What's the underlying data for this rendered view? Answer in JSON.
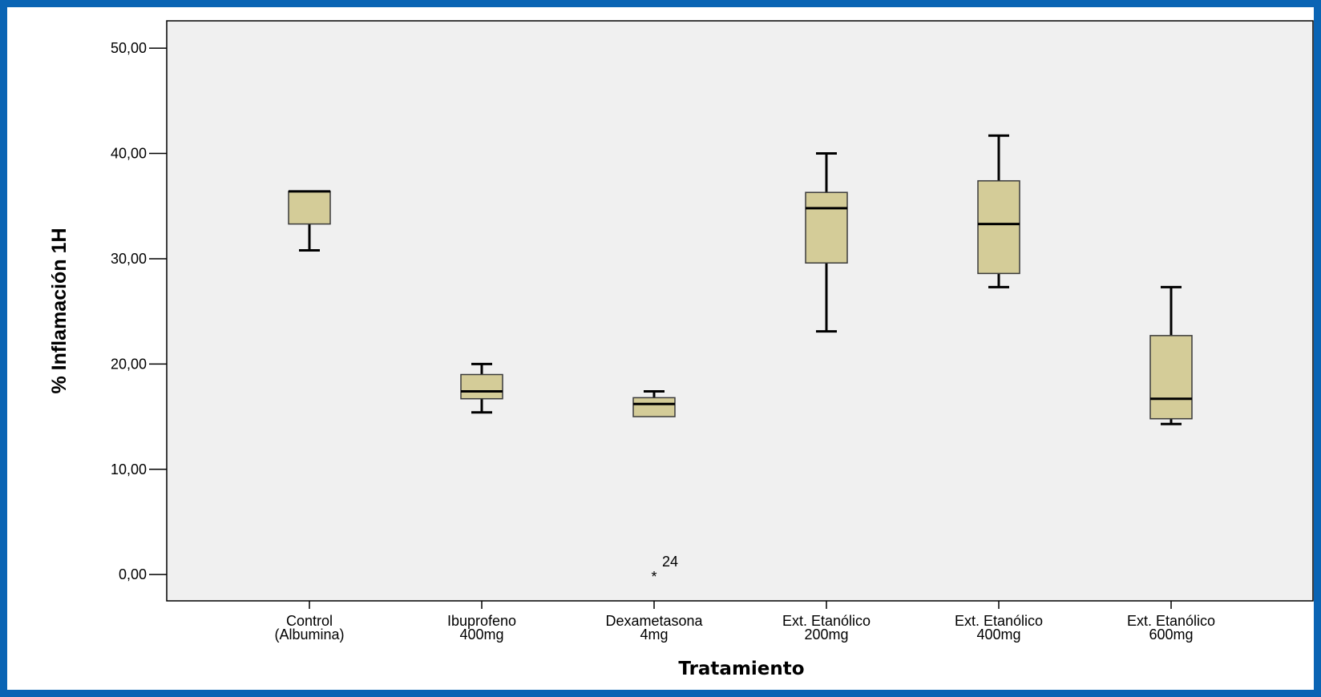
{
  "chart_data": {
    "type": "boxplot",
    "title": "",
    "xlabel": "Tratamiento",
    "ylabel": "% Inflamación 1H",
    "ylim": [
      -2.5,
      52.6
    ],
    "yticks": [
      {
        "value": 0,
        "label": "0,00"
      },
      {
        "value": 10,
        "label": "10,00"
      },
      {
        "value": 20,
        "label": "20,00"
      },
      {
        "value": 30,
        "label": "30,00"
      },
      {
        "value": 40,
        "label": "40,00"
      },
      {
        "value": 50,
        "label": "50,00"
      }
    ],
    "categories": [
      {
        "line1": "Control",
        "line2": "(Albumina)"
      },
      {
        "line1": "Ibuprofeno",
        "line2": "400mg"
      },
      {
        "line1": "Dexametasona",
        "line2": "4mg"
      },
      {
        "line1": "Ext. Etanólico",
        "line2": "200mg"
      },
      {
        "line1": "Ext. Etanólico",
        "line2": "400mg"
      },
      {
        "line1": "Ext. Etanólico",
        "line2": "600mg"
      }
    ],
    "boxes": [
      {
        "whisker_low": 30.8,
        "q1": 33.3,
        "median": 36.4,
        "q3": 36.4,
        "whisker_high": 36.4
      },
      {
        "whisker_low": 15.4,
        "q1": 16.7,
        "median": 17.4,
        "q3": 19.0,
        "whisker_high": 20.0
      },
      {
        "whisker_low": 15.0,
        "q1": 15.0,
        "median": 16.2,
        "q3": 16.8,
        "whisker_high": 17.4
      },
      {
        "whisker_low": 23.1,
        "q1": 29.6,
        "median": 34.8,
        "q3": 36.3,
        "whisker_high": 40.0
      },
      {
        "whisker_low": 27.3,
        "q1": 28.6,
        "median": 33.3,
        "q3": 37.4,
        "whisker_high": 41.7
      },
      {
        "whisker_low": 14.3,
        "q1": 14.8,
        "median": 16.7,
        "q3": 22.7,
        "whisker_high": 27.3
      }
    ],
    "outliers": [
      {
        "category_index": 2,
        "value": 0.0,
        "marker": "*",
        "label": "24"
      }
    ],
    "grid": false,
    "colors": {
      "box_fill": "#d4cc98",
      "plot_background": "#f0f0f0",
      "frame_border": "#0a64b4"
    }
  }
}
